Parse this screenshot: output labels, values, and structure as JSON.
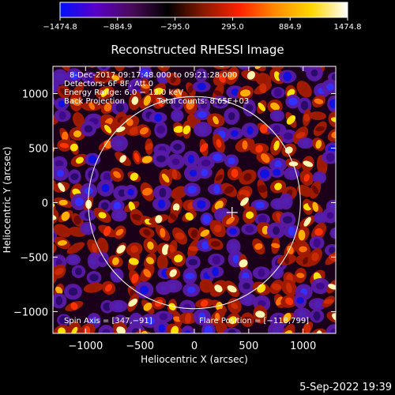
{
  "chart_data": {
    "type": "heatmap",
    "title": "Reconstructed RHESSI Image",
    "xlabel": "Heliocentric X (arcsec)",
    "ylabel": "Heliocentric Y (arcsec)",
    "xlim": [
      -1300,
      1300
    ],
    "ylim": [
      -1200,
      1250
    ],
    "x_ticks": [
      -1000,
      -500,
      0,
      500,
      1000
    ],
    "x_tick_labels": [
      "−1000",
      "−500",
      "0",
      "500",
      "1000"
    ],
    "y_ticks": [
      -1000,
      -500,
      0,
      500,
      1000
    ],
    "y_tick_labels": [
      "−1000",
      "−500",
      "0",
      "500",
      "1000"
    ],
    "grid": false,
    "colorbar": {
      "range": [
        -1474.8,
        1474.8
      ],
      "tick_values": [
        -1474.8,
        -884.9,
        -295.0,
        295.0,
        884.9,
        1474.8
      ],
      "tick_labels": [
        "−1474.8",
        "−884.9",
        "−295.0",
        "295.0",
        "884.9",
        "1474.8"
      ],
      "stops": [
        "#0010ff",
        "#5a00c8",
        "#4a0a5a",
        "#000000",
        "#8a1a00",
        "#ff2200",
        "#ff8c00",
        "#ffd700",
        "#ffffff"
      ]
    },
    "annotations": {
      "date_line": "8-Dec-2017 09:17:48.000 to 09:21:28.000",
      "detectors": "Detectors: 6F 8F, Att 0",
      "energy": "Energy Range: 6.0 − 12.0 keV",
      "method": "Back Projection",
      "counts": "Total counts: 8.65E+03",
      "spin_axis": "Spin Axis = [347,−91]",
      "flare_position": "Flare Position = [−118,799]"
    },
    "solar_disk": {
      "center": [
        0,
        0
      ],
      "radius_arcsec": 975
    },
    "crosshair": {
      "x": 347,
      "y": -91
    }
  },
  "footer": {
    "timestamp": "5-Sep-2022 19:39"
  }
}
